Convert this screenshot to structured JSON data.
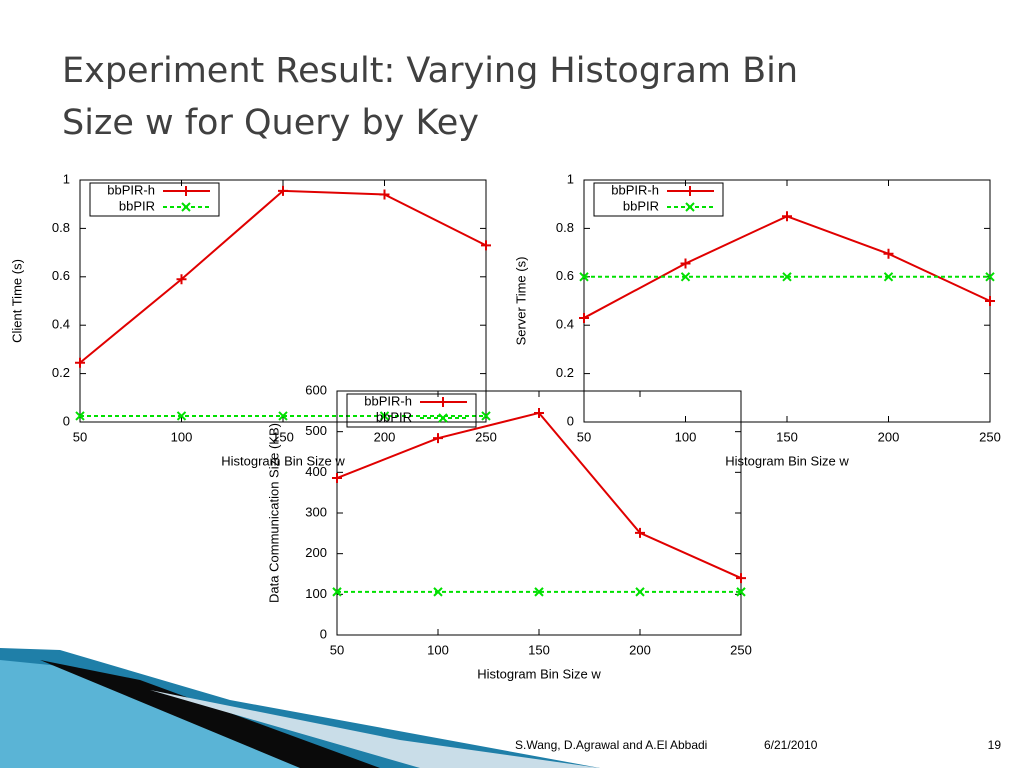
{
  "slide": {
    "title_lines": [
      "Experiment Result: Varying Histogram Bin",
      "Size w for Query by Key"
    ],
    "footer": {
      "authors": "S.Wang, D.Agrawal and A.El Abbadi",
      "date": "6/21/2010",
      "page": "19"
    }
  },
  "chart_data": [
    {
      "type": "line",
      "xlabel": "Histogram Bin Size w",
      "ylabel": "Client Time (s)",
      "x": [
        50,
        100,
        150,
        200,
        250
      ],
      "xlim": [
        50,
        250
      ],
      "xticks": [
        50,
        100,
        150,
        200,
        250
      ],
      "ylim": [
        0,
        1
      ],
      "yticks": [
        0,
        0.2,
        0.4,
        0.6,
        0.8,
        1
      ],
      "legend": "upper left",
      "series": [
        {
          "name": "bbPIR-h",
          "color": "#e00000",
          "marker": "plus",
          "dashed": false,
          "values": [
            0.245,
            0.59,
            0.955,
            0.94,
            0.73
          ]
        },
        {
          "name": "bbPIR",
          "color": "#00e000",
          "marker": "cross",
          "dashed": true,
          "values": [
            0.025,
            0.025,
            0.025,
            0.025,
            0.025
          ]
        }
      ]
    },
    {
      "type": "line",
      "xlabel": "Histogram Bin Size w",
      "ylabel": "Server Time (s)",
      "x": [
        50,
        100,
        150,
        200,
        250
      ],
      "xlim": [
        50,
        250
      ],
      "xticks": [
        50,
        100,
        150,
        200,
        250
      ],
      "ylim": [
        0,
        1
      ],
      "yticks": [
        0,
        0.2,
        0.4,
        0.6,
        0.8,
        1
      ],
      "legend": "upper left",
      "series": [
        {
          "name": "bbPIR-h",
          "color": "#e00000",
          "marker": "plus",
          "dashed": false,
          "values": [
            0.43,
            0.655,
            0.85,
            0.695,
            0.5
          ]
        },
        {
          "name": "bbPIR",
          "color": "#00e000",
          "marker": "cross",
          "dashed": true,
          "values": [
            0.6,
            0.6,
            0.6,
            0.6,
            0.6
          ]
        }
      ]
    },
    {
      "type": "line",
      "xlabel": "Histogram Bin Size w",
      "ylabel": "Data Communication Size (KB)",
      "x": [
        50,
        100,
        150,
        200,
        250
      ],
      "xlim": [
        50,
        250
      ],
      "xticks": [
        50,
        100,
        150,
        200,
        250
      ],
      "ylim": [
        0,
        600
      ],
      "yticks": [
        0,
        100,
        200,
        300,
        400,
        500,
        600
      ],
      "legend": "upper left",
      "series": [
        {
          "name": "bbPIR-h",
          "color": "#e00000",
          "marker": "plus",
          "dashed": false,
          "values": [
            386,
            484,
            546,
            251,
            140
          ]
        },
        {
          "name": "bbPIR",
          "color": "#00e000",
          "marker": "cross",
          "dashed": true,
          "values": [
            106,
            106,
            106,
            106,
            106
          ]
        }
      ]
    }
  ]
}
